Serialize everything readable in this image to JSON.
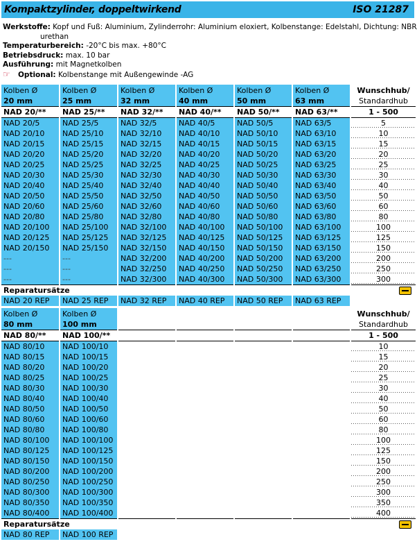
{
  "title": "Kompaktzylinder, doppeltwirkend",
  "iso": "ISO 21287",
  "info": {
    "werkstoffe_label": "Werkstoffe:",
    "werkstoffe": "Kopf und Fuß: Aluminium, Zylinderrohr: Aluminium eloxiert, Kolbenstange: Edelstahl, Dichtung: NBR/Poly-",
    "werkstoffe_cont": "urethan",
    "temp_label": "Temperaturbereich:",
    "temp": "-20°C bis max. +80°C",
    "druck_label": "Betriebsdruck:",
    "druck": "max. 10 bar",
    "ausf_label": "Ausführung:",
    "ausf": "mit Magnetkolben",
    "opt_label": "Optional:",
    "opt": "Kolbenstange mit Außengewinde -AG"
  },
  "table1": {
    "headers": [
      {
        "l1": "Kolben Ø",
        "l2": "20 mm"
      },
      {
        "l1": "Kolben Ø",
        "l2": "25 mm"
      },
      {
        "l1": "Kolben Ø",
        "l2": "32 mm"
      },
      {
        "l1": "Kolben Ø",
        "l2": "40 mm"
      },
      {
        "l1": "Kolben Ø",
        "l2": "50 mm"
      },
      {
        "l1": "Kolben Ø",
        "l2": "63 mm"
      }
    ],
    "wunsch_l1": "Wunschhub/",
    "wunsch_l2": "Standardhub",
    "nad": [
      "NAD 20/**",
      "NAD 25/**",
      "NAD 32/**",
      "NAD 40/**",
      "NAD 50/**",
      "NAD 63/**"
    ],
    "nad_range": "1 - 500",
    "rows": [
      {
        "c": [
          "NAD 20/5",
          "NAD 25/5",
          "NAD 32/5",
          "NAD 40/5",
          "NAD 50/5",
          "NAD 63/5"
        ],
        "h": "5"
      },
      {
        "c": [
          "NAD 20/10",
          "NAD 25/10",
          "NAD 32/10",
          "NAD 40/10",
          "NAD 50/10",
          "NAD 63/10"
        ],
        "h": "10"
      },
      {
        "c": [
          "NAD 20/15",
          "NAD 25/15",
          "NAD 32/15",
          "NAD 40/15",
          "NAD 50/15",
          "NAD 63/15"
        ],
        "h": "15"
      },
      {
        "c": [
          "NAD 20/20",
          "NAD 25/20",
          "NAD 32/20",
          "NAD 40/20",
          "NAD 50/20",
          "NAD 63/20"
        ],
        "h": "20"
      },
      {
        "c": [
          "NAD 20/25",
          "NAD 25/25",
          "NAD 32/25",
          "NAD 40/25",
          "NAD 50/25",
          "NAD 63/25"
        ],
        "h": "25"
      },
      {
        "c": [
          "NAD 20/30",
          "NAD 25/30",
          "NAD 32/30",
          "NAD 40/30",
          "NAD 50/30",
          "NAD 63/30"
        ],
        "h": "30"
      },
      {
        "c": [
          "NAD 20/40",
          "NAD 25/40",
          "NAD 32/40",
          "NAD 40/40",
          "NAD 50/40",
          "NAD 63/40"
        ],
        "h": "40"
      },
      {
        "c": [
          "NAD 20/50",
          "NAD 25/50",
          "NAD 32/50",
          "NAD 40/50",
          "NAD 50/50",
          "NAD 63/50"
        ],
        "h": "50"
      },
      {
        "c": [
          "NAD 20/60",
          "NAD 25/60",
          "NAD 32/60",
          "NAD 40/60",
          "NAD 50/60",
          "NAD 63/60"
        ],
        "h": "60"
      },
      {
        "c": [
          "NAD 20/80",
          "NAD 25/80",
          "NAD 32/80",
          "NAD 40/80",
          "NAD 50/80",
          "NAD 63/80"
        ],
        "h": "80"
      },
      {
        "c": [
          "NAD 20/100",
          "NAD 25/100",
          "NAD 32/100",
          "NAD 40/100",
          "NAD 50/100",
          "NAD 63/100"
        ],
        "h": "100"
      },
      {
        "c": [
          "NAD 20/125",
          "NAD 25/125",
          "NAD 32/125",
          "NAD 40/125",
          "NAD 50/125",
          "NAD 63/125"
        ],
        "h": "125"
      },
      {
        "c": [
          "NAD 20/150",
          "NAD 25/150",
          "NAD 32/150",
          "NAD 40/150",
          "NAD 50/150",
          "NAD 63/150"
        ],
        "h": "150"
      },
      {
        "c": [
          "---",
          "---",
          "NAD 32/200",
          "NAD 40/200",
          "NAD 50/200",
          "NAD 63/200"
        ],
        "h": "200"
      },
      {
        "c": [
          "---",
          "---",
          "NAD 32/250",
          "NAD 40/250",
          "NAD 50/250",
          "NAD 63/250"
        ],
        "h": "250"
      },
      {
        "c": [
          "---",
          "---",
          "NAD 32/300",
          "NAD 40/300",
          "NAD 50/300",
          "NAD 63/300"
        ],
        "h": "300"
      }
    ],
    "rep_title": "Reparatursätze",
    "rep": [
      "NAD 20 REP",
      "NAD 25 REP",
      "NAD 32 REP",
      "NAD 40 REP",
      "NAD 50 REP",
      "NAD 63 REP"
    ]
  },
  "table2": {
    "headers": [
      {
        "l1": "Kolben Ø",
        "l2": "80 mm"
      },
      {
        "l1": "Kolben Ø",
        "l2": "100 mm"
      }
    ],
    "wunsch_l1": "Wunschhub/",
    "wunsch_l2": "Standardhub",
    "nad": [
      "NAD 80/**",
      "NAD 100/**"
    ],
    "nad_range": "1 - 500",
    "rows": [
      {
        "c": [
          "NAD 80/10",
          "NAD 100/10"
        ],
        "h": "10"
      },
      {
        "c": [
          "NAD 80/15",
          "NAD 100/15"
        ],
        "h": "15"
      },
      {
        "c": [
          "NAD 80/20",
          "NAD 100/20"
        ],
        "h": "20"
      },
      {
        "c": [
          "NAD 80/25",
          "NAD 100/25"
        ],
        "h": "25"
      },
      {
        "c": [
          "NAD 80/30",
          "NAD 100/30"
        ],
        "h": "30"
      },
      {
        "c": [
          "NAD 80/40",
          "NAD 100/40"
        ],
        "h": "40"
      },
      {
        "c": [
          "NAD 80/50",
          "NAD 100/50"
        ],
        "h": "50"
      },
      {
        "c": [
          "NAD 80/60",
          "NAD 100/60"
        ],
        "h": "60"
      },
      {
        "c": [
          "NAD 80/80",
          "NAD 100/80"
        ],
        "h": "80"
      },
      {
        "c": [
          "NAD 80/100",
          "NAD 100/100"
        ],
        "h": "100"
      },
      {
        "c": [
          "NAD 80/125",
          "NAD 100/125"
        ],
        "h": "125"
      },
      {
        "c": [
          "NAD 80/150",
          "NAD 100/150"
        ],
        "h": "150"
      },
      {
        "c": [
          "NAD 80/200",
          "NAD 100/200"
        ],
        "h": "200"
      },
      {
        "c": [
          "NAD 80/250",
          "NAD 100/250"
        ],
        "h": "250"
      },
      {
        "c": [
          "NAD 80/300",
          "NAD 100/300"
        ],
        "h": "300"
      },
      {
        "c": [
          "NAD 80/350",
          "NAD 100/350"
        ],
        "h": "350"
      },
      {
        "c": [
          "NAD 80/400",
          "NAD 100/400"
        ],
        "h": "400"
      }
    ],
    "rep_title": "Reparatursätze",
    "rep": [
      "NAD 80 REP",
      "NAD 100 REP"
    ]
  }
}
